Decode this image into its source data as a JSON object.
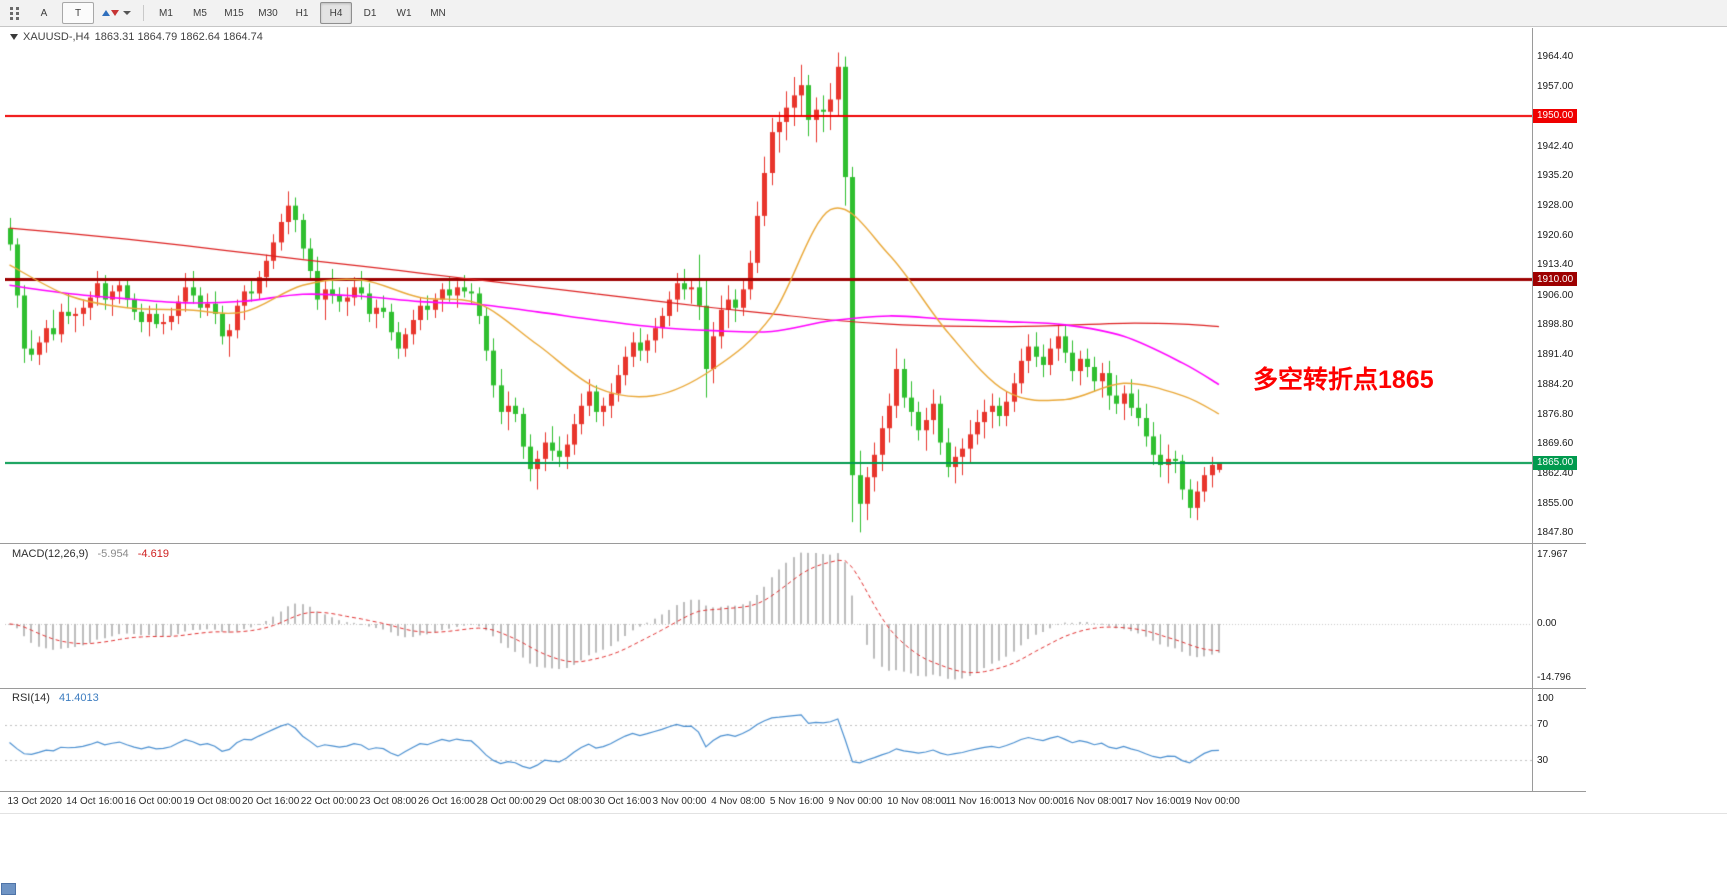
{
  "toolbar": {
    "tool_a": "A",
    "tool_t": "T",
    "timeframes": [
      "M1",
      "M5",
      "M15",
      "M30",
      "H1",
      "H4",
      "D1",
      "W1",
      "MN"
    ],
    "active_timeframe": "H4"
  },
  "chart_data": {
    "type": "candlestick",
    "symbol": "XAUUSD-",
    "period": "H4",
    "title": "XAUUSD-,H4",
    "ohlc": "1863.31 1864.79 1862.64 1864.74",
    "annotation": {
      "text": "多空转折点1865",
      "color": "#fe0000"
    },
    "ylim": [
      1845.4,
      1971.5
    ],
    "y_axis_labels": [
      1964.4,
      1957.0,
      1942.4,
      1935.2,
      1928.0,
      1920.6,
      1913.4,
      1906.0,
      1898.8,
      1891.4,
      1884.2,
      1876.8,
      1869.6,
      1862.4,
      1855.0,
      1847.8
    ],
    "hlines": [
      {
        "price": 1950.0,
        "label": "1950.00",
        "color": "#ef0000",
        "width": 2
      },
      {
        "price": 1910.0,
        "label": "1910.00",
        "color": "#9d0000",
        "width": 3
      },
      {
        "price": 1865.0,
        "label": "1865.00",
        "color": "#009a4e",
        "width": 2
      }
    ],
    "x_label_step": 8,
    "x_labels": [
      "13 Oct 2020",
      "14 Oct 16:00",
      "16 Oct 00:00",
      "19 Oct 08:00",
      "20 Oct 16:00",
      "22 Oct 00:00",
      "23 Oct 08:00",
      "26 Oct 16:00",
      "28 Oct 00:00",
      "29 Oct 08:00",
      "30 Oct 16:00",
      "3 Nov 00:00",
      "4 Nov 08:00",
      "5 Nov 16:00",
      "9 Nov 00:00",
      "10 Nov 08:00",
      "11 Nov 16:00",
      "13 Nov 00:00",
      "16 Nov 08:00",
      "17 Nov 16:00",
      "19 Nov 00:00"
    ],
    "colors": {
      "bull": "#e8352c",
      "bear": "#2fbf2f",
      "macd_hist": "#bdbdbd",
      "macd_signal": "#e03131",
      "rsi": "#4a8fd0",
      "levels": "#c0c0c0"
    },
    "ma_sample_idx": [
      0,
      8,
      16,
      24,
      32,
      40,
      48,
      56,
      64,
      72,
      80,
      88,
      96,
      104,
      112,
      120,
      128,
      136,
      144,
      152,
      160,
      165
    ],
    "ma_lines": [
      {
        "name": "ma-slow",
        "color": "#dc2020",
        "width": 1.2,
        "values": [
          1922.5,
          1921.2,
          1919.8,
          1918.2,
          1916.5,
          1914.8,
          1913.2,
          1911.5,
          1909.8,
          1908.1,
          1906.4,
          1904.7,
          1903.0,
          1901.5,
          1900.0,
          1899.0,
          1898.5,
          1898.4,
          1898.7,
          1899.2,
          1899.0,
          1898.4
        ]
      },
      {
        "name": "ma-mid",
        "color": "#ff00ff",
        "width": 1.6,
        "values": [
          1908.5,
          1906.5,
          1905.2,
          1904.2,
          1904.6,
          1906.3,
          1905.8,
          1904.5,
          1903.8,
          1902.0,
          1900.0,
          1898.3,
          1897.4,
          1897.2,
          1899.8,
          1901.0,
          1900.2,
          1899.6,
          1898.8,
          1896.0,
          1889.5,
          1884.2
        ]
      },
      {
        "name": "ma-fast",
        "color": "#e9a838",
        "width": 1.4,
        "values": [
          1913.5,
          1906.0,
          1903.0,
          1902.5,
          1902.0,
          1908.5,
          1909.8,
          1905.5,
          1904.0,
          1894.0,
          1883.5,
          1881.5,
          1888.0,
          1901.0,
          1927.0,
          1916.0,
          1897.0,
          1882.5,
          1880.5,
          1884.5,
          1881.5,
          1877.0
        ]
      }
    ],
    "macd": {
      "label": "MACD(12,26,9)",
      "value_main": "-5.954",
      "value_signal": "-4.619",
      "fast": 12,
      "slow": 26,
      "signal": 9,
      "axis": [
        "17.967",
        "0.00",
        "-14.796"
      ]
    },
    "rsi": {
      "label": "RSI(14)",
      "value": "41.4013",
      "period": 14,
      "levels": [
        70,
        30
      ],
      "axis": [
        "100",
        "70",
        "30"
      ]
    },
    "candles": [
      [
        1922.5,
        1925.0,
        1917.0,
        1918.5
      ],
      [
        1918.5,
        1920.0,
        1903.0,
        1906.0
      ],
      [
        1906.0,
        1908.5,
        1889.5,
        1893.0
      ],
      [
        1893.0,
        1897.5,
        1890.0,
        1891.5
      ],
      [
        1891.5,
        1896.0,
        1889.0,
        1894.5
      ],
      [
        1894.5,
        1900.0,
        1892.0,
        1898.0
      ],
      [
        1898.0,
        1902.5,
        1895.0,
        1896.5
      ],
      [
        1896.5,
        1904.0,
        1894.5,
        1902.0
      ],
      [
        1902.0,
        1906.5,
        1899.0,
        1901.0
      ],
      [
        1901.0,
        1903.0,
        1897.0,
        1901.5
      ],
      [
        1901.5,
        1905.0,
        1898.5,
        1903.0
      ],
      [
        1903.0,
        1907.0,
        1900.0,
        1905.5
      ],
      [
        1905.5,
        1912.0,
        1903.5,
        1909.0
      ],
      [
        1909.0,
        1911.0,
        1902.5,
        1905.0
      ],
      [
        1905.0,
        1908.5,
        1901.0,
        1907.0
      ],
      [
        1907.0,
        1909.5,
        1904.0,
        1908.5
      ],
      [
        1908.5,
        1910.0,
        1903.0,
        1905.0
      ],
      [
        1905.0,
        1906.5,
        1900.0,
        1902.0
      ],
      [
        1902.0,
        1904.0,
        1897.0,
        1899.5
      ],
      [
        1899.5,
        1903.5,
        1896.0,
        1901.5
      ],
      [
        1901.5,
        1904.0,
        1898.0,
        1899.0
      ],
      [
        1899.0,
        1901.5,
        1896.5,
        1899.5
      ],
      [
        1899.5,
        1903.0,
        1897.5,
        1901.0
      ],
      [
        1901.0,
        1906.0,
        1899.0,
        1904.5
      ],
      [
        1904.5,
        1911.5,
        1902.0,
        1908.0
      ],
      [
        1908.0,
        1912.0,
        1904.0,
        1906.0
      ],
      [
        1906.0,
        1908.0,
        1900.5,
        1903.0
      ],
      [
        1903.0,
        1906.5,
        1901.0,
        1904.0
      ],
      [
        1904.0,
        1907.0,
        1899.0,
        1901.5
      ],
      [
        1901.5,
        1903.5,
        1894.0,
        1896.0
      ],
      [
        1896.0,
        1899.0,
        1891.0,
        1897.5
      ],
      [
        1897.5,
        1905.0,
        1895.5,
        1903.5
      ],
      [
        1903.5,
        1908.5,
        1900.0,
        1907.0
      ],
      [
        1907.0,
        1910.0,
        1904.5,
        1906.5
      ],
      [
        1906.5,
        1912.0,
        1905.0,
        1910.5
      ],
      [
        1910.5,
        1916.0,
        1908.0,
        1914.5
      ],
      [
        1914.5,
        1921.0,
        1912.5,
        1919.0
      ],
      [
        1919.0,
        1926.0,
        1917.0,
        1924.0
      ],
      [
        1924.0,
        1931.5,
        1921.0,
        1928.0
      ],
      [
        1928.0,
        1930.0,
        1921.5,
        1924.5
      ],
      [
        1924.5,
        1926.0,
        1915.0,
        1917.5
      ],
      [
        1917.5,
        1920.0,
        1910.0,
        1912.0
      ],
      [
        1912.0,
        1915.5,
        1902.5,
        1905.0
      ],
      [
        1905.0,
        1910.0,
        1900.0,
        1907.5
      ],
      [
        1907.5,
        1912.5,
        1904.0,
        1906.0
      ],
      [
        1906.0,
        1908.0,
        1902.0,
        1904.5
      ],
      [
        1904.5,
        1908.0,
        1901.0,
        1905.5
      ],
      [
        1905.5,
        1910.5,
        1903.5,
        1908.0
      ],
      [
        1908.0,
        1912.0,
        1905.0,
        1906.5
      ],
      [
        1906.5,
        1909.0,
        1899.5,
        1901.5
      ],
      [
        1901.5,
        1905.0,
        1898.0,
        1903.0
      ],
      [
        1903.0,
        1906.0,
        1900.5,
        1902.0
      ],
      [
        1902.0,
        1904.0,
        1895.0,
        1897.0
      ],
      [
        1897.0,
        1899.5,
        1890.5,
        1893.0
      ],
      [
        1893.0,
        1898.0,
        1891.0,
        1896.5
      ],
      [
        1896.5,
        1902.5,
        1894.0,
        1900.0
      ],
      [
        1900.0,
        1905.5,
        1897.5,
        1903.5
      ],
      [
        1903.5,
        1906.0,
        1900.0,
        1902.5
      ],
      [
        1902.5,
        1906.5,
        1900.5,
        1905.0
      ],
      [
        1905.0,
        1909.0,
        1902.0,
        1907.5
      ],
      [
        1907.5,
        1910.5,
        1904.5,
        1906.0
      ],
      [
        1906.0,
        1909.5,
        1903.0,
        1908.0
      ],
      [
        1908.0,
        1911.0,
        1905.5,
        1907.0
      ],
      [
        1907.0,
        1909.0,
        1904.0,
        1906.5
      ],
      [
        1906.5,
        1908.0,
        1899.0,
        1901.0
      ],
      [
        1901.0,
        1903.0,
        1890.0,
        1892.5
      ],
      [
        1892.5,
        1895.5,
        1881.0,
        1884.0
      ],
      [
        1884.0,
        1888.0,
        1874.5,
        1877.5
      ],
      [
        1877.5,
        1882.5,
        1873.0,
        1879.0
      ],
      [
        1879.0,
        1881.0,
        1875.0,
        1877.0
      ],
      [
        1877.0,
        1878.5,
        1866.0,
        1869.0
      ],
      [
        1869.0,
        1872.0,
        1860.5,
        1863.5
      ],
      [
        1863.5,
        1868.0,
        1858.5,
        1866.0
      ],
      [
        1866.0,
        1872.5,
        1863.0,
        1870.0
      ],
      [
        1870.0,
        1874.0,
        1865.5,
        1868.0
      ],
      [
        1868.0,
        1871.5,
        1864.0,
        1866.5
      ],
      [
        1866.5,
        1872.0,
        1863.5,
        1869.5
      ],
      [
        1869.5,
        1877.0,
        1867.0,
        1874.5
      ],
      [
        1874.5,
        1882.0,
        1872.0,
        1879.0
      ],
      [
        1879.0,
        1885.5,
        1876.5,
        1882.5
      ],
      [
        1882.5,
        1884.0,
        1875.0,
        1877.5
      ],
      [
        1877.5,
        1881.0,
        1874.0,
        1879.0
      ],
      [
        1879.0,
        1884.5,
        1876.0,
        1882.0
      ],
      [
        1882.0,
        1889.0,
        1880.0,
        1886.5
      ],
      [
        1886.5,
        1893.5,
        1884.0,
        1891.0
      ],
      [
        1891.0,
        1897.0,
        1888.5,
        1894.5
      ],
      [
        1894.5,
        1898.0,
        1890.0,
        1892.5
      ],
      [
        1892.5,
        1896.5,
        1889.5,
        1895.0
      ],
      [
        1895.0,
        1900.5,
        1892.0,
        1898.0
      ],
      [
        1898.0,
        1903.0,
        1895.5,
        1901.0
      ],
      [
        1901.0,
        1907.0,
        1898.5,
        1905.0
      ],
      [
        1905.0,
        1911.5,
        1902.0,
        1909.0
      ],
      [
        1909.0,
        1912.5,
        1905.0,
        1907.5
      ],
      [
        1907.5,
        1910.0,
        1904.0,
        1908.0
      ],
      [
        1908.0,
        1916.0,
        1900.0,
        1903.5
      ],
      [
        1903.5,
        1910.0,
        1881.0,
        1888.0
      ],
      [
        1888.0,
        1899.5,
        1884.5,
        1896.0
      ],
      [
        1896.0,
        1906.0,
        1893.0,
        1902.5
      ],
      [
        1902.5,
        1908.5,
        1898.0,
        1905.0
      ],
      [
        1905.0,
        1907.5,
        1899.5,
        1903.0
      ],
      [
        1903.0,
        1910.0,
        1901.0,
        1907.5
      ],
      [
        1907.5,
        1917.0,
        1905.0,
        1914.0
      ],
      [
        1914.0,
        1929.0,
        1911.5,
        1925.5
      ],
      [
        1925.5,
        1940.0,
        1923.0,
        1936.0
      ],
      [
        1936.0,
        1949.5,
        1933.0,
        1946.0
      ],
      [
        1946.0,
        1951.0,
        1941.0,
        1948.5
      ],
      [
        1948.5,
        1956.0,
        1944.0,
        1952.0
      ],
      [
        1952.0,
        1959.5,
        1947.5,
        1955.0
      ],
      [
        1955.0,
        1962.5,
        1950.0,
        1957.5
      ],
      [
        1957.5,
        1960.0,
        1945.0,
        1949.0
      ],
      [
        1949.0,
        1954.5,
        1943.5,
        1951.5
      ],
      [
        1951.5,
        1955.0,
        1946.0,
        1951.0
      ],
      [
        1951.0,
        1958.0,
        1946.5,
        1954.0
      ],
      [
        1954.0,
        1965.5,
        1950.0,
        1962.0
      ],
      [
        1962.0,
        1964.5,
        1928.0,
        1935.0
      ],
      [
        1935.0,
        1937.5,
        1850.5,
        1862.0
      ],
      [
        1862.0,
        1868.0,
        1848.0,
        1855.0
      ],
      [
        1855.0,
        1864.0,
        1851.0,
        1861.5
      ],
      [
        1861.5,
        1870.0,
        1858.0,
        1867.0
      ],
      [
        1867.0,
        1876.5,
        1863.0,
        1873.5
      ],
      [
        1873.5,
        1882.0,
        1870.0,
        1879.0
      ],
      [
        1879.0,
        1893.0,
        1876.0,
        1888.0
      ],
      [
        1888.0,
        1890.5,
        1878.5,
        1881.0
      ],
      [
        1881.0,
        1885.0,
        1874.0,
        1877.5
      ],
      [
        1877.5,
        1880.0,
        1870.5,
        1873.0
      ],
      [
        1873.0,
        1878.5,
        1868.0,
        1875.5
      ],
      [
        1875.5,
        1883.0,
        1872.0,
        1879.5
      ],
      [
        1879.5,
        1881.5,
        1867.0,
        1870.0
      ],
      [
        1870.0,
        1873.5,
        1861.5,
        1864.0
      ],
      [
        1864.0,
        1869.0,
        1860.0,
        1866.5
      ],
      [
        1866.5,
        1871.0,
        1862.0,
        1868.5
      ],
      [
        1868.5,
        1875.5,
        1865.0,
        1872.0
      ],
      [
        1872.0,
        1878.0,
        1869.5,
        1875.0
      ],
      [
        1875.0,
        1880.5,
        1871.0,
        1877.5
      ],
      [
        1877.5,
        1882.0,
        1873.5,
        1879.0
      ],
      [
        1879.0,
        1881.0,
        1874.0,
        1876.5
      ],
      [
        1876.5,
        1882.5,
        1874.0,
        1880.0
      ],
      [
        1880.0,
        1887.0,
        1877.5,
        1884.5
      ],
      [
        1884.5,
        1893.0,
        1882.0,
        1890.0
      ],
      [
        1890.0,
        1896.5,
        1887.0,
        1893.5
      ],
      [
        1893.5,
        1897.0,
        1888.5,
        1891.0
      ],
      [
        1891.0,
        1894.0,
        1886.0,
        1889.0
      ],
      [
        1889.0,
        1895.5,
        1886.5,
        1893.0
      ],
      [
        1893.0,
        1898.5,
        1890.0,
        1896.0
      ],
      [
        1896.0,
        1899.0,
        1889.5,
        1892.0
      ],
      [
        1892.0,
        1895.0,
        1885.0,
        1887.5
      ],
      [
        1887.5,
        1892.5,
        1884.0,
        1890.5
      ],
      [
        1890.5,
        1893.0,
        1886.0,
        1888.5
      ],
      [
        1888.5,
        1891.0,
        1882.5,
        1885.0
      ],
      [
        1885.0,
        1889.5,
        1881.0,
        1887.0
      ],
      [
        1887.0,
        1890.0,
        1878.0,
        1881.5
      ],
      [
        1881.5,
        1886.5,
        1877.0,
        1879.5
      ],
      [
        1879.5,
        1884.0,
        1875.5,
        1882.0
      ],
      [
        1882.0,
        1885.5,
        1876.5,
        1878.5
      ],
      [
        1878.5,
        1883.0,
        1874.0,
        1876.0
      ],
      [
        1876.0,
        1879.5,
        1869.0,
        1871.5
      ],
      [
        1871.5,
        1875.0,
        1864.5,
        1867.0
      ],
      [
        1867.0,
        1872.0,
        1861.5,
        1864.5
      ],
      [
        1864.5,
        1869.5,
        1860.0,
        1866.0
      ],
      [
        1866.0,
        1868.0,
        1862.5,
        1865.5
      ],
      [
        1865.5,
        1867.0,
        1856.0,
        1858.5
      ],
      [
        1858.5,
        1861.0,
        1851.5,
        1854.0
      ],
      [
        1854.0,
        1860.5,
        1851.0,
        1858.0
      ],
      [
        1858.0,
        1864.0,
        1855.5,
        1862.0
      ],
      [
        1862.0,
        1866.5,
        1859.0,
        1864.5
      ],
      [
        1863.31,
        1864.79,
        1862.64,
        1864.74
      ]
    ]
  }
}
